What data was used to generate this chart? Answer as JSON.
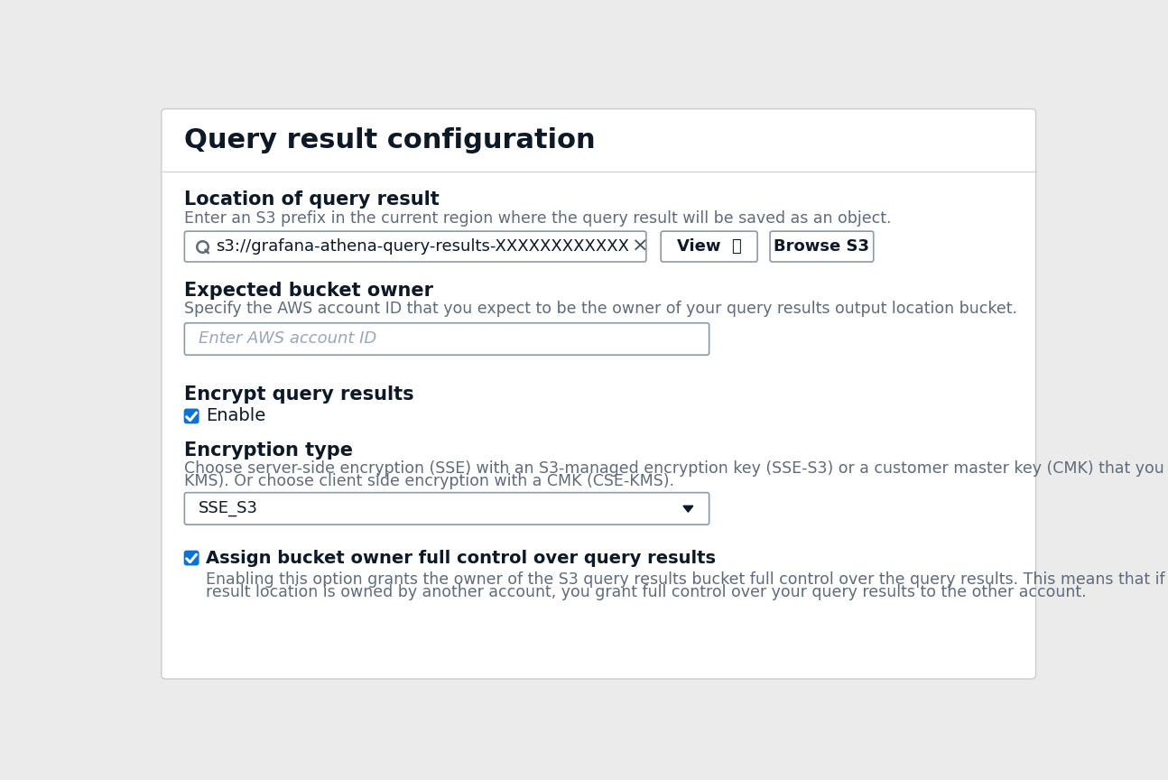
{
  "title": "Query result configuration",
  "bg_color": "#ffffff",
  "outer_bg": "#ebebeb",
  "border_color": "#cccccc",
  "section1_label": "Location of query result",
  "section1_sub": "Enter an S3 prefix in the current region where the query result will be saved as an object.",
  "search_text": "s3://grafana-athena-query-results-XXXXXXXXXXXX",
  "btn1_text": "View  ⧉",
  "btn2_text": "Browse S3",
  "section2_label": "Expected bucket owner",
  "section2_sub": "Specify the AWS account ID that you expect to be the owner of your query results output location bucket.",
  "placeholder_text": "Enter AWS account ID",
  "section3_label": "Encrypt query results",
  "checkbox1_label": "Enable",
  "section4_label": "Encryption type",
  "section4_sub1": "Choose server-side encryption (SSE) with an S3-managed encryption key (SSE-S3) or a customer master key (CMK) that you provide (SSE-",
  "section4_sub2": "KMS). Or choose client side encryption with a CMK (CSE-KMS).",
  "dropdown_text": "SSE_S3",
  "checkbox2_label": "Assign bucket owner full control over query results",
  "checkbox2_sub1": "Enabling this option grants the owner of the S3 query results bucket full control over the query results. This means that if your query",
  "checkbox2_sub2": "result location is owned by another account, you grant full control over your query results to the other account.",
  "checkbox_color": "#0972d3",
  "text_dark": "#0d1926",
  "text_medium": "#414d5c",
  "text_light": "#5f6b7a",
  "text_placeholder": "#9ba7b6",
  "input_border": "#8d9aa8",
  "input_bg": "#ffffff",
  "divider_color": "#d1d5db",
  "title_fontsize": 22,
  "label_fontsize": 15,
  "sub_fontsize": 12.5,
  "body_fontsize": 13
}
